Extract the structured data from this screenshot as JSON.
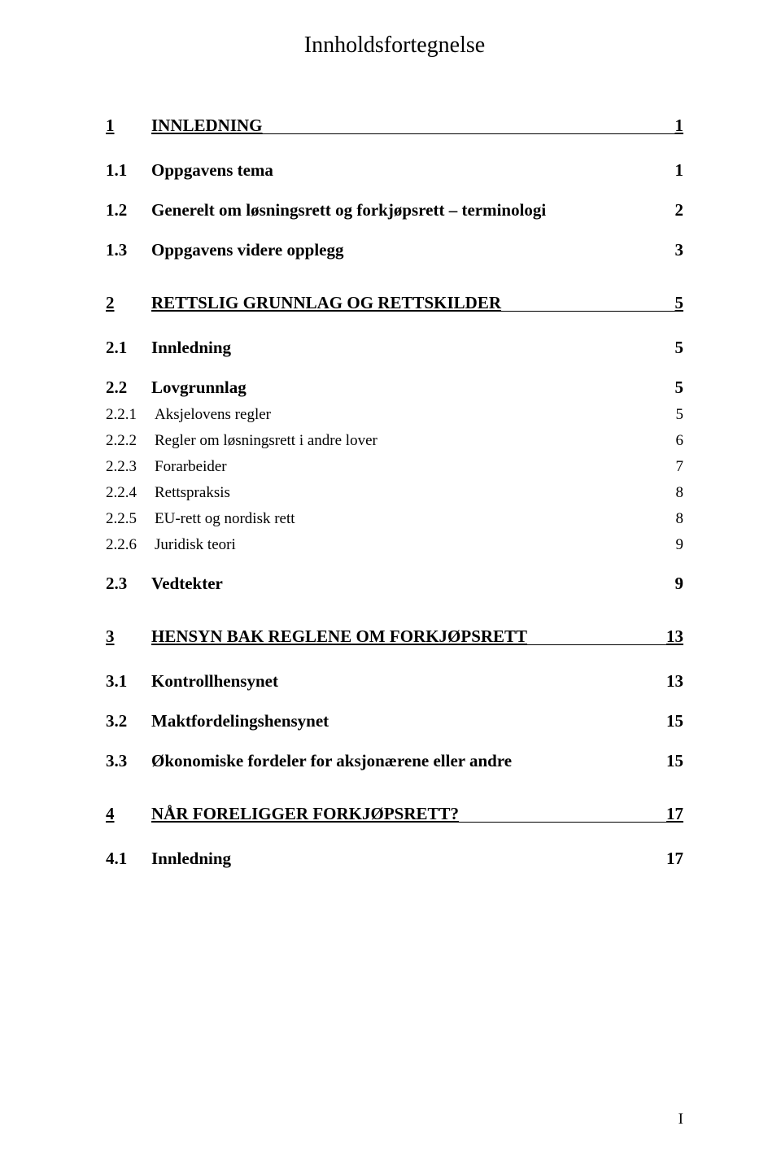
{
  "title": "Innholdsfortegnelse",
  "footer_roman": "I",
  "entries": [
    {
      "level": "chapter",
      "num": "1",
      "text": "INNLEDNING",
      "page": "1"
    },
    {
      "level": "section",
      "num": "1.1",
      "text": "Oppgavens tema",
      "page": "1"
    },
    {
      "level": "section",
      "num": "1.2",
      "text": "Generelt om løsningsrett og forkjøpsrett – terminologi",
      "page": "2"
    },
    {
      "level": "section",
      "num": "1.3",
      "text": "Oppgavens videre opplegg",
      "page": "3"
    },
    {
      "level": "chapter",
      "num": "2",
      "text": "RETTSLIG GRUNNLAG OG RETTSKILDER",
      "page": "5"
    },
    {
      "level": "section",
      "num": "2.1",
      "text": "Innledning",
      "page": "5"
    },
    {
      "level": "section",
      "num": "2.2",
      "text": "Lovgrunnlag",
      "page": "5"
    },
    {
      "level": "subsection",
      "num": "2.2.1",
      "text": "Aksjelovens regler",
      "page": "5"
    },
    {
      "level": "subsection",
      "num": "2.2.2",
      "text": "Regler om løsningsrett i andre lover",
      "page": "6"
    },
    {
      "level": "subsection",
      "num": "2.2.3",
      "text": "Forarbeider",
      "page": "7"
    },
    {
      "level": "subsection",
      "num": "2.2.4",
      "text": "Rettspraksis",
      "page": "8"
    },
    {
      "level": "subsection",
      "num": "2.2.5",
      "text": "EU-rett og nordisk rett",
      "page": "8"
    },
    {
      "level": "subsection",
      "num": "2.2.6",
      "text": "Juridisk teori",
      "page": "9"
    },
    {
      "level": "section",
      "num": "2.3",
      "text": "Vedtekter",
      "page": "9"
    },
    {
      "level": "chapter",
      "num": "3",
      "text": "HENSYN BAK REGLENE OM FORKJØPSRETT",
      "page": "13"
    },
    {
      "level": "section",
      "num": "3.1",
      "text": "Kontrollhensynet",
      "page": "13"
    },
    {
      "level": "section",
      "num": "3.2",
      "text": "Maktfordelingshensynet",
      "page": "15"
    },
    {
      "level": "section",
      "num": "3.3",
      "text": "Økonomiske fordeler for aksjonærene eller andre",
      "page": "15"
    },
    {
      "level": "chapter",
      "num": "4",
      "text": "NÅR FORELIGGER FORKJØPSRETT?",
      "page": "17"
    },
    {
      "level": "section",
      "num": "4.1",
      "text": "Innledning",
      "page": "17"
    }
  ]
}
